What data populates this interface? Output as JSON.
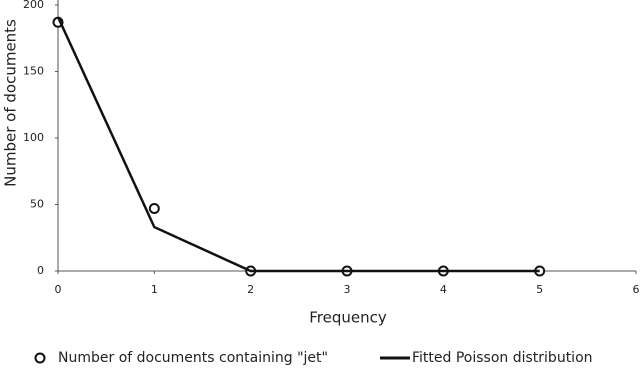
{
  "chart_data": {
    "type": "line",
    "x_label": "Frequency",
    "y_label": "Number of documents",
    "x": [
      0,
      1,
      2,
      3,
      4,
      5
    ],
    "series": [
      {
        "name": "Number of documents containing \"jet\"",
        "type": "scatter",
        "color": "#111111",
        "values": [
          187,
          47,
          0,
          0,
          0,
          0
        ]
      },
      {
        "name": "Fitted Poisson distribution",
        "type": "line",
        "color": "#111111",
        "values": [
          191,
          33,
          0,
          0,
          0,
          0
        ]
      }
    ],
    "xlim": [
      0,
      6
    ],
    "xticks": [
      0,
      1,
      2,
      3,
      4,
      5,
      6
    ],
    "ylim": [
      0,
      200
    ],
    "yticks": [
      0,
      50,
      100,
      150,
      200
    ],
    "legend": "bottom"
  }
}
